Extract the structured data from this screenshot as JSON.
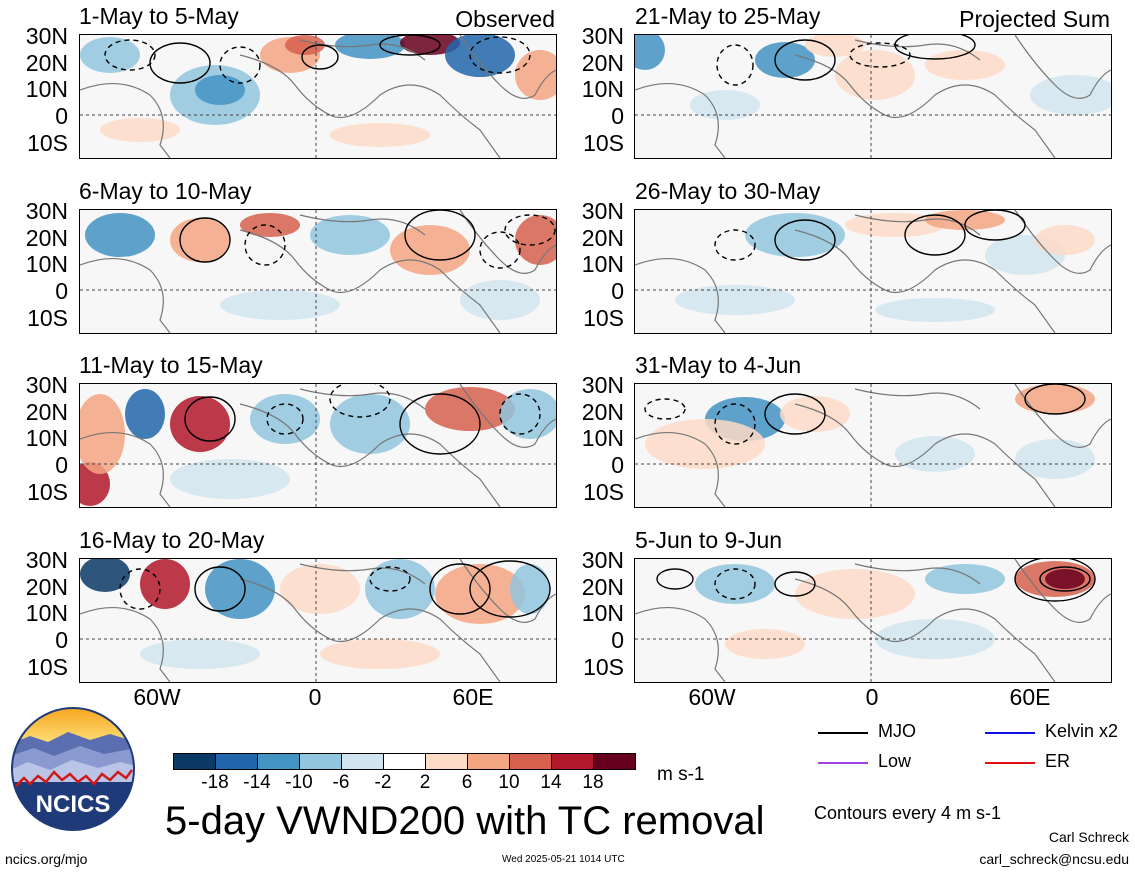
{
  "panels": [
    {
      "title": "1-May to 5-May",
      "tag": "Observed"
    },
    {
      "title": "21-May to 25-May",
      "tag": "Projected Sum"
    },
    {
      "title": "6-May to 10-May",
      "tag": ""
    },
    {
      "title": "26-May to 30-May",
      "tag": ""
    },
    {
      "title": "11-May to 15-May",
      "tag": ""
    },
    {
      "title": "31-May to 4-Jun",
      "tag": ""
    },
    {
      "title": "16-May to 20-May",
      "tag": ""
    },
    {
      "title": "5-Jun to 9-Jun",
      "tag": ""
    }
  ],
  "lat_labels": [
    "30N",
    "20N",
    "10N",
    "0",
    "10S"
  ],
  "lon_labels": [
    "60W",
    "0",
    "60E"
  ],
  "colorbar": {
    "ticks": [
      "-18",
      "-14",
      "-10",
      "-6",
      "-2",
      "2",
      "6",
      "10",
      "14",
      "18"
    ],
    "colors": [
      "#0b3a66",
      "#2166ac",
      "#4393c3",
      "#92c5de",
      "#d1e5f0",
      "#ffffff",
      "#fddbc7",
      "#f4a582",
      "#d6604d",
      "#b2182b",
      "#67001f"
    ],
    "units": "m s-1"
  },
  "title": "5-day VWND200 with TC removal",
  "legend": [
    {
      "label": "MJO",
      "color": "#000000"
    },
    {
      "label": "Kelvin x2",
      "color": "#1010e0"
    },
    {
      "label": "Low",
      "color": "#a040e0"
    },
    {
      "label": "ER",
      "color": "#e01010"
    }
  ],
  "contour_note": "Contours every 4 m s-1",
  "logo_text": "NCICS",
  "footer": {
    "url": "ncics.org/mjo",
    "timestamp": "Wed 2025-05-21 1014 UTC",
    "author": "Carl Schreck",
    "email": "carl_schreck@ncsu.edu"
  }
}
